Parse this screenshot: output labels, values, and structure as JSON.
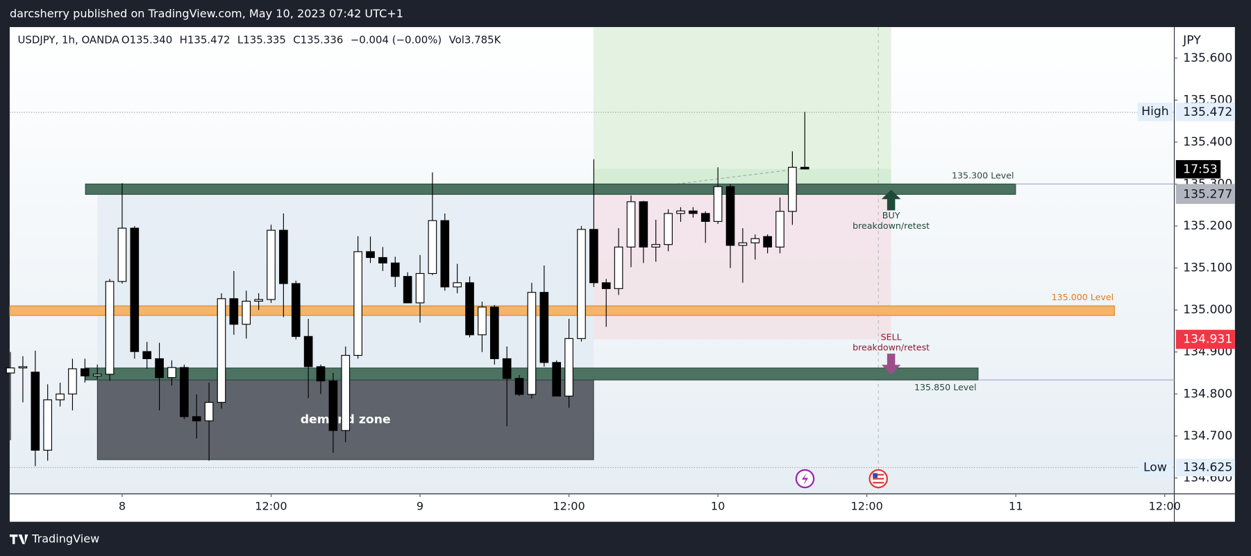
{
  "header": {
    "published": "darcsherry published on TradingView.com, May 10, 2023 07:42 UTC+1"
  },
  "legend": {
    "symbol": "USDJPY, 1h, OANDA",
    "fields": [
      "O135.340",
      "H135.472",
      "L135.335",
      "C135.336",
      "−0.004 (−0.00%)",
      "Vol3.785K"
    ]
  },
  "annotations": {
    "level_top": "135.300 Level",
    "level_mid": "135.000 Level",
    "level_bottom": "135.850 Level",
    "zone": "demand zone",
    "buy": "BUY",
    "buy_note": "breakdown/retest",
    "sell": "SELL",
    "sell_note": "breakdown/retest"
  },
  "price_tags": {
    "high_label": "High",
    "high_price": "135.472",
    "countdown": "17:53",
    "level_price": "135.277",
    "red_price": "134.931",
    "low_label": "Low",
    "low_price": "134.625"
  },
  "footer": {
    "brand": "TradingView"
  },
  "chart_data": {
    "type": "candlestick",
    "currency": "JPY",
    "x": [
      -9,
      -8,
      -7,
      -6,
      -5,
      -4,
      -3,
      -2,
      -1,
      0,
      1,
      2,
      3,
      4,
      5,
      6,
      7,
      8,
      9,
      10,
      11,
      12,
      13,
      14,
      15,
      16,
      17,
      18,
      19,
      20,
      21,
      22,
      23,
      24,
      25,
      26,
      27,
      28,
      29,
      30,
      31,
      32,
      33,
      34,
      35,
      36,
      37,
      38,
      39,
      40,
      41,
      42,
      43,
      44,
      45,
      46,
      47,
      48,
      49,
      50,
      51,
      52,
      53,
      54,
      55
    ],
    "open": [
      134.85,
      134.862,
      134.852,
      134.666,
      134.786,
      134.8,
      134.86,
      134.843,
      134.847,
      135.068,
      135.195,
      134.901,
      134.884,
      134.839,
      134.863,
      134.746,
      134.736,
      134.78,
      135.027,
      134.966,
      135.021,
      135.025,
      135.19,
      135.063,
      134.937,
      134.865,
      134.831,
      134.713,
      134.892,
      135.139,
      135.125,
      135.112,
      135.08,
      135.017,
      135.087,
      135.213,
      135.055,
      135.065,
      134.941,
      135.007,
      134.884,
      134.837,
      134.799,
      135.042,
      134.875,
      134.795,
      134.932,
      135.192,
      135.065,
      135.051,
      135.15,
      135.258,
      135.15,
      135.156,
      135.23,
      135.236,
      135.23,
      135.211,
      135.294,
      135.154,
      135.16,
      135.175,
      135.15,
      135.235,
      135.34
    ],
    "high": [
      134.9,
      134.89,
      134.903,
      134.823,
      134.827,
      134.884,
      134.884,
      134.87,
      135.074,
      135.302,
      135.2,
      134.924,
      134.922,
      134.88,
      134.87,
      134.799,
      134.827,
      135.04,
      135.093,
      135.046,
      135.04,
      135.203,
      135.23,
      135.07,
      134.979,
      134.87,
      134.85,
      134.913,
      135.176,
      135.175,
      135.15,
      135.127,
      135.09,
      135.131,
      135.328,
      135.23,
      135.11,
      135.08,
      135.02,
      135.012,
      134.913,
      134.845,
      135.065,
      135.106,
      134.88,
      134.979,
      135.2,
      135.359,
      135.074,
      135.195,
      135.273,
      135.26,
      135.215,
      135.24,
      135.245,
      135.245,
      135.235,
      135.34,
      135.3,
      135.195,
      135.18,
      135.18,
      135.268,
      135.378,
      135.472
    ],
    "low": [
      134.69,
      134.78,
      134.628,
      134.641,
      134.77,
      134.761,
      134.827,
      134.835,
      134.831,
      135.063,
      134.884,
      134.86,
      134.761,
      134.82,
      134.74,
      134.694,
      134.641,
      134.765,
      134.941,
      134.932,
      135.0,
      135.017,
      134.983,
      134.93,
      134.79,
      134.8,
      134.66,
      134.685,
      134.884,
      135.112,
      135.093,
      135.055,
      135.017,
      134.97,
      135.083,
      135.046,
      135.04,
      134.935,
      134.9,
      134.87,
      134.723,
      134.795,
      134.789,
      134.865,
      134.795,
      134.767,
      134.925,
      135.055,
      134.96,
      135.036,
      135.102,
      135.112,
      135.115,
      135.14,
      135.21,
      135.22,
      135.16,
      135.205,
      135.1,
      135.065,
      135.12,
      135.135,
      135.135,
      135.203,
      135.335
    ],
    "close": [
      134.862,
      134.865,
      134.666,
      134.786,
      134.8,
      134.86,
      134.843,
      134.847,
      135.068,
      135.195,
      134.901,
      134.884,
      134.839,
      134.863,
      134.746,
      134.736,
      134.78,
      135.027,
      134.966,
      135.021,
      135.025,
      135.19,
      135.063,
      134.937,
      134.865,
      134.831,
      134.713,
      134.892,
      135.139,
      135.125,
      135.112,
      135.08,
      135.017,
      135.087,
      135.213,
      135.055,
      135.065,
      134.941,
      135.007,
      134.884,
      134.837,
      134.799,
      135.042,
      134.875,
      134.795,
      134.932,
      135.192,
      135.065,
      135.051,
      135.15,
      135.258,
      135.15,
      135.156,
      135.23,
      135.236,
      135.23,
      135.211,
      135.294,
      135.154,
      135.16,
      135.17,
      135.15,
      135.235,
      135.34,
      135.336
    ],
    "up_color": "#ffffff",
    "down_color": "#000000",
    "wick_color": "#000000",
    "xlim": [
      -9.06,
      84.77
    ],
    "xticks": [
      {
        "value": 0,
        "label": "8"
      },
      {
        "value": 12,
        "label": "12:00"
      },
      {
        "value": 24,
        "label": "9"
      },
      {
        "value": 36,
        "label": "12:00"
      },
      {
        "value": 48,
        "label": "10"
      },
      {
        "value": 60,
        "label": "12:00"
      },
      {
        "value": 72,
        "label": "11"
      },
      {
        "value": 84,
        "label": "12:00"
      }
    ],
    "ylim": [
      134.562,
      135.674
    ],
    "yticks": [
      {
        "value": 134.6,
        "label": "134.600"
      },
      {
        "value": 134.7,
        "label": "134.700"
      },
      {
        "value": 134.8,
        "label": "134.800"
      },
      {
        "value": 134.9,
        "label": "134.900"
      },
      {
        "value": 135,
        "label": "135.000"
      },
      {
        "value": 135.1,
        "label": "135.100"
      },
      {
        "value": 135.2,
        "label": "135.200"
      },
      {
        "value": 135.3,
        "label": "135.300"
      },
      {
        "value": 135.4,
        "label": "135.400"
      },
      {
        "value": 135.5,
        "label": "135.500"
      },
      {
        "value": 135.6,
        "label": "135.600"
      }
    ]
  }
}
